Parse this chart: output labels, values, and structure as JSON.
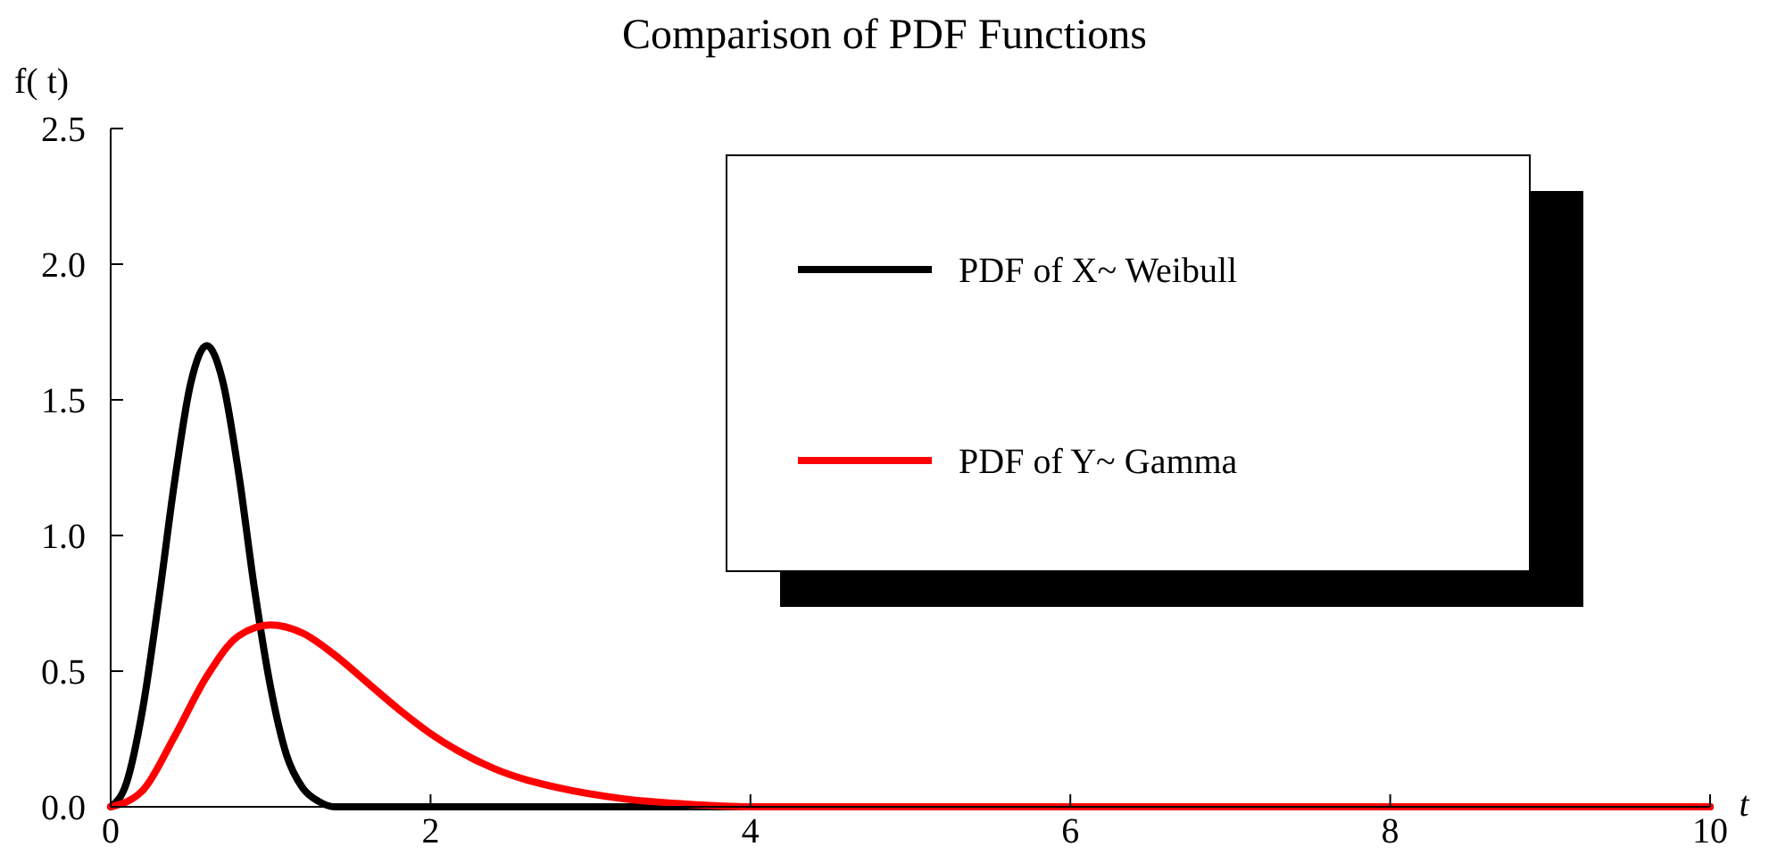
{
  "chart_data": {
    "type": "line",
    "title": "Comparison of PDF Functions",
    "xlabel": "t",
    "ylabel": "f( t)",
    "xlim": [
      0,
      10
    ],
    "xticks": [
      0,
      2,
      4,
      6,
      8,
      10
    ],
    "ylim": [
      0,
      2.5
    ],
    "yticks": [
      {
        "value": 0,
        "label": "0.0"
      },
      0.5,
      {
        "value": 1,
        "label": "1.0"
      },
      1.5,
      {
        "value": 2,
        "label": "2.0"
      },
      2.5
    ],
    "legend": "top right",
    "grid": false,
    "line_style": "solid",
    "series": [
      {
        "name": "PDF of X~ Weibull",
        "color": "#000000",
        "x": [
          0,
          0.1,
          0.2,
          0.3,
          0.4,
          0.5,
          0.6,
          0.7,
          0.8,
          0.9,
          1.0,
          1.1,
          1.2,
          1.3,
          1.4,
          1.6,
          2,
          10
        ],
        "values": [
          0,
          0.09,
          0.36,
          0.76,
          1.2,
          1.56,
          1.7,
          1.57,
          1.23,
          0.8,
          0.44,
          0.19,
          0.07,
          0.02,
          0,
          0,
          0,
          0
        ]
      },
      {
        "name": "PDF of Y~ Gamma",
        "color": "#ff0000",
        "x": [
          0,
          0.2,
          0.4,
          0.6,
          0.8,
          1.0,
          1.2,
          1.4,
          1.6,
          1.8,
          2.0,
          2.4,
          2.8,
          3.2,
          3.6,
          4.0,
          5,
          10
        ],
        "values": [
          0,
          0.06,
          0.26,
          0.48,
          0.63,
          0.67,
          0.64,
          0.56,
          0.46,
          0.36,
          0.27,
          0.14,
          0.07,
          0.03,
          0.01,
          0,
          0,
          0
        ]
      }
    ]
  }
}
